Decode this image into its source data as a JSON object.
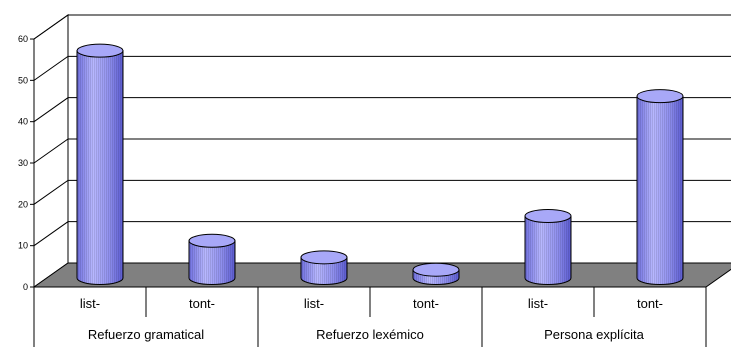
{
  "chart_data": {
    "type": "bar",
    "style": "3d-cylinder",
    "groups": [
      {
        "label": "Refuerzo gramatical",
        "categories": [
          "list-",
          "tont-"
        ]
      },
      {
        "label": "Refuerzo lexémico",
        "categories": [
          "list-",
          "tont-"
        ]
      },
      {
        "label": "Persona explícita",
        "categories": [
          "list-",
          "tont-"
        ]
      }
    ],
    "categories": [
      "list-",
      "tont-",
      "list-",
      "tont-",
      "list-",
      "tont-"
    ],
    "values": [
      55,
      9,
      5,
      2,
      15,
      44
    ],
    "yticks": [
      "0",
      "10",
      "20",
      "30",
      "40",
      "50",
      "60"
    ],
    "ylim": [
      0,
      60
    ],
    "grid": true,
    "colors": {
      "bar": "#9a9af0",
      "bar_dark": "#6a6ad8",
      "floor": "#808080",
      "grid": "#000000"
    }
  }
}
